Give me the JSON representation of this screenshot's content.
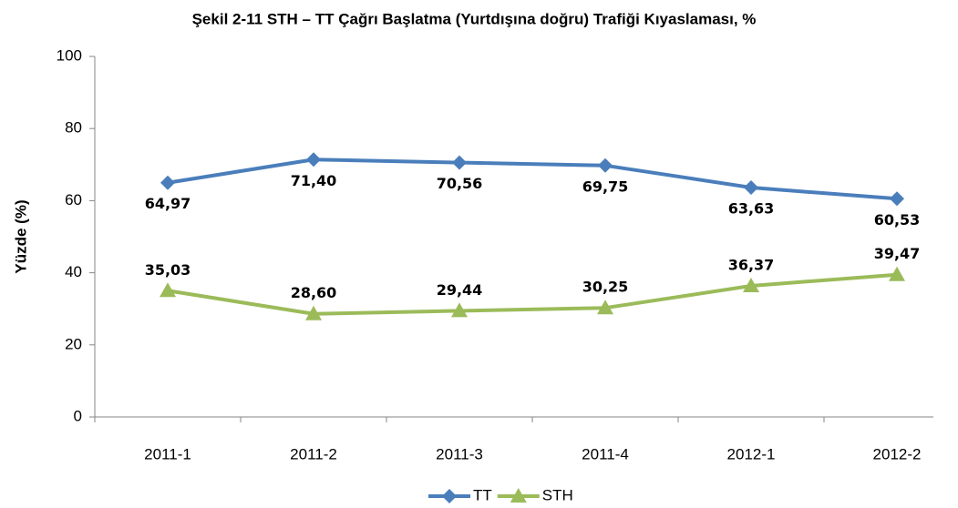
{
  "chart_data": {
    "type": "line",
    "title": "Şekil 2-11 STH – TT Çağrı Başlatma (Yurtdışına doğru) Trafiği Kıyaslaması, %",
    "ylabel": "Yüzde (%)",
    "categories": [
      "2011-1",
      "2011-2",
      "2011-3",
      "2011-4",
      "2012-1",
      "2012-2"
    ],
    "series": [
      {
        "name": "TT",
        "color": "#4a7ebb",
        "marker": "diamond",
        "values": [
          64.97,
          71.4,
          70.56,
          69.75,
          63.63,
          60.53
        ],
        "value_labels": [
          "64,97",
          "71,40",
          "70,56",
          "69,75",
          "63,63",
          "60,53"
        ]
      },
      {
        "name": "STH",
        "color": "#9bbb59",
        "marker": "triangle",
        "values": [
          35.03,
          28.6,
          29.44,
          30.25,
          36.37,
          39.47
        ],
        "value_labels": [
          "35,03",
          "28,60",
          "29,44",
          "30,25",
          "36,37",
          "39,47"
        ]
      }
    ],
    "ylim": [
      0,
      100
    ],
    "yticks": [
      0,
      20,
      40,
      60,
      80,
      100
    ],
    "legend": "bottom"
  }
}
